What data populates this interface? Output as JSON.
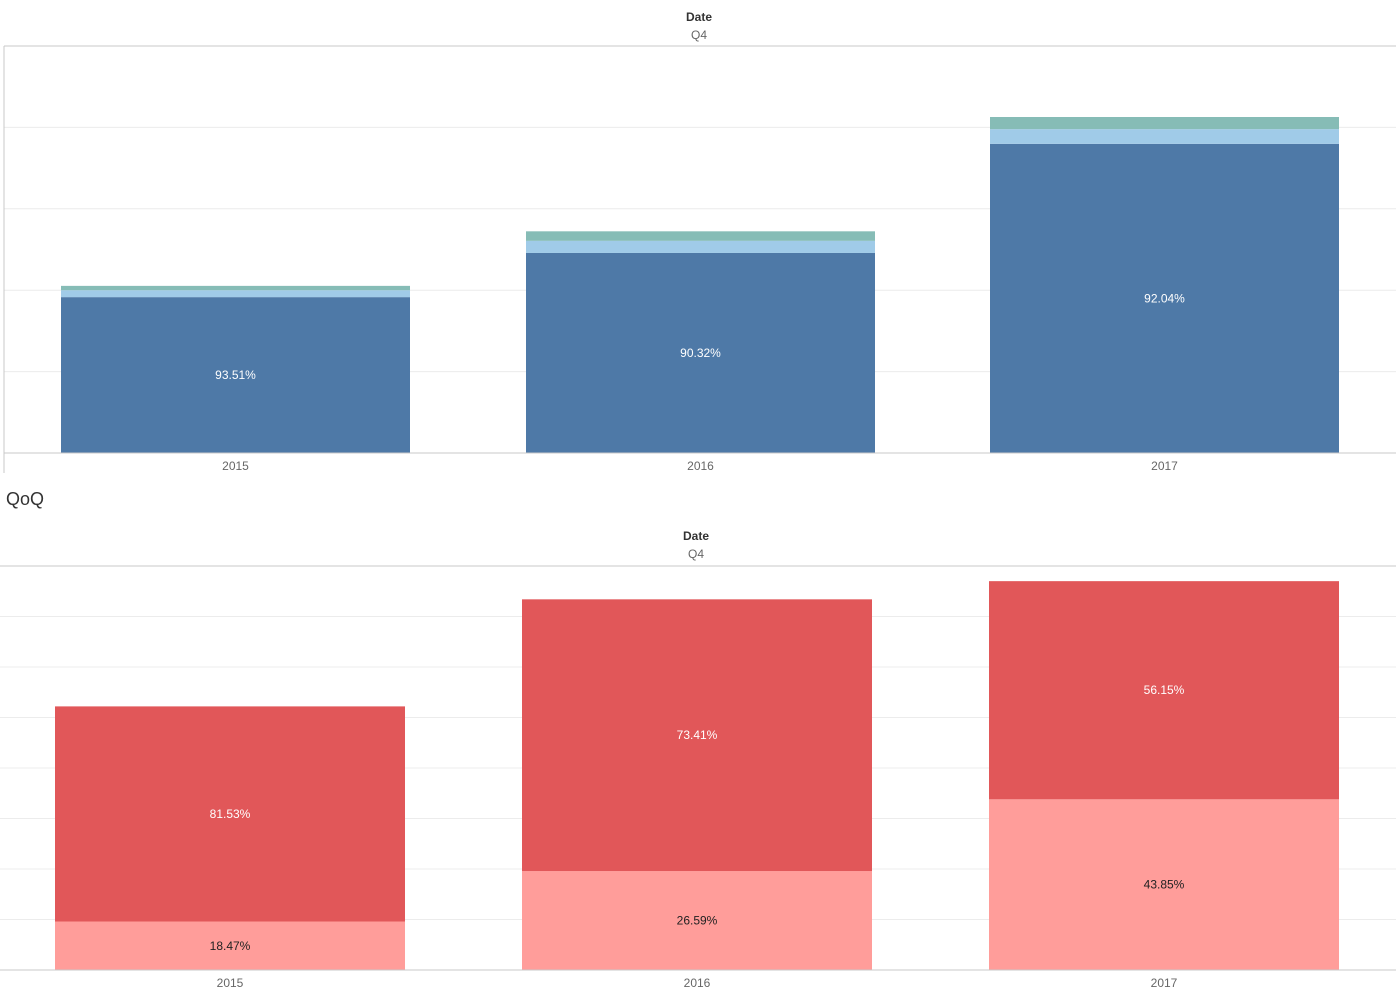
{
  "top_panel": {
    "column_header": {
      "title": "Date",
      "subtitle": "Q4"
    }
  },
  "bottom_panel": {
    "section_title": "QoQ",
    "column_header": {
      "title": "Date",
      "subtitle": "Q4"
    }
  },
  "colors": {
    "blue_main": "#4e79a7",
    "blue_light": "#a0cbe8",
    "teal": "#86bcb6",
    "red_main": "#e15759",
    "red_light": "#ff9d9a",
    "grid": "#ececec",
    "axis": "#c8c8c8"
  },
  "chart_data": [
    {
      "type": "bar",
      "stacked": true,
      "categories": [
        "2015",
        "2016",
        "2017"
      ],
      "ylim": [
        0,
        470
      ],
      "grid": true,
      "series": [
        {
          "values": [
            180,
            231,
            357
          ],
          "color": "#4e79a7",
          "labels": [
            "93.51%",
            "90.32%",
            "92.04%"
          ],
          "label_color": "#ffffff"
        },
        {
          "values": [
            8,
            14,
            17
          ],
          "color": "#a0cbe8",
          "labels": [
            "",
            "",
            ""
          ]
        },
        {
          "values": [
            5,
            11,
            14
          ],
          "color": "#86bcb6",
          "labels": [
            "",
            "",
            ""
          ]
        }
      ]
    },
    {
      "type": "bar",
      "stacked": true,
      "categories": [
        "2015",
        "2016",
        "2017"
      ],
      "ylim": [
        0,
        400
      ],
      "grid": true,
      "series": [
        {
          "values": [
            48,
            98,
            169
          ],
          "color": "#ff9d9a",
          "labels": [
            "18.47%",
            "26.59%",
            "43.85%"
          ],
          "label_color": "#222222"
        },
        {
          "values": [
            213,
            269,
            216
          ],
          "color": "#e15759",
          "labels": [
            "81.53%",
            "73.41%",
            "56.15%"
          ],
          "label_color": "#ffffff"
        }
      ]
    }
  ]
}
